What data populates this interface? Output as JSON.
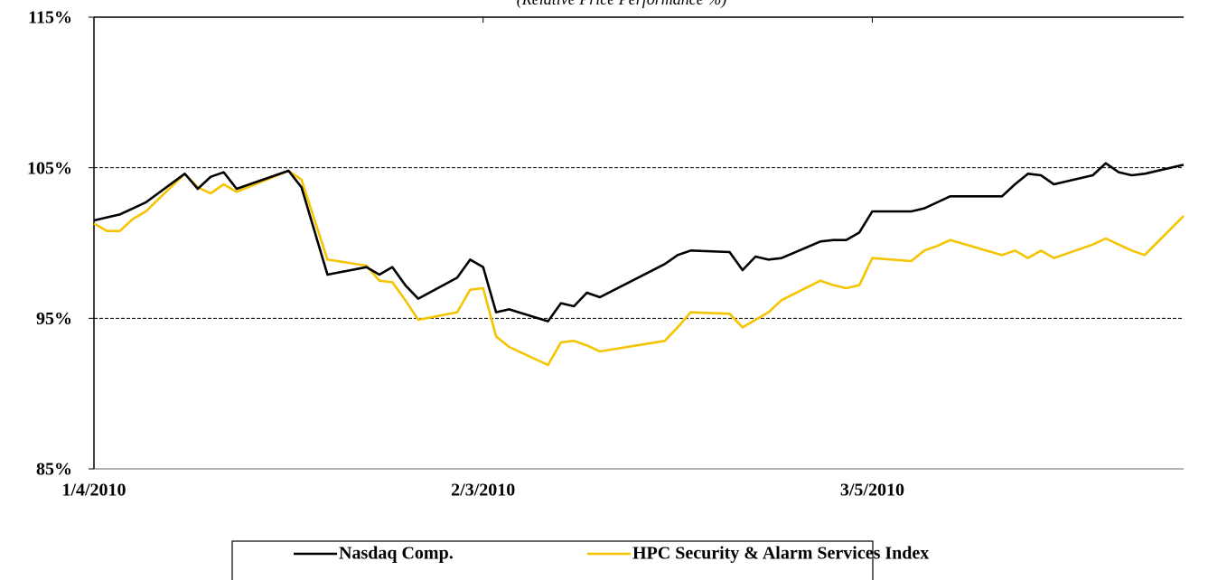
{
  "chart_data": {
    "type": "line",
    "title": "(Relative Price Performance %)",
    "x": [
      "1/4/2010",
      "1/5/2010",
      "1/6/2010",
      "1/7/2010",
      "1/8/2010",
      "1/11/2010",
      "1/12/2010",
      "1/13/2010",
      "1/14/2010",
      "1/15/2010",
      "1/19/2010",
      "1/20/2010",
      "1/22/2010",
      "1/25/2010",
      "1/26/2010",
      "1/27/2010",
      "1/28/2010",
      "1/29/2010",
      "2/1/2010",
      "2/2/2010",
      "2/3/2010",
      "2/4/2010",
      "2/5/2010",
      "2/8/2010",
      "2/9/2010",
      "2/10/2010",
      "2/11/2010",
      "2/12/2010",
      "2/17/2010",
      "2/18/2010",
      "2/19/2010",
      "2/22/2010",
      "2/23/2010",
      "2/24/2010",
      "2/25/2010",
      "2/26/2010",
      "3/1/2010",
      "3/2/2010",
      "3/3/2010",
      "3/4/2010",
      "3/5/2010",
      "3/8/2010",
      "3/9/2010",
      "3/10/2010",
      "3/11/2010",
      "3/15/2010",
      "3/16/2010",
      "3/17/2010",
      "3/18/2010",
      "3/19/2010",
      "3/22/2010",
      "3/23/2010",
      "3/24/2010",
      "3/25/2010",
      "3/26/2010",
      "3/29/2010"
    ],
    "series": [
      {
        "name": "Nasdaq Comp.",
        "color": "#000000",
        "values": [
          101.5,
          101.7,
          101.9,
          102.3,
          102.7,
          104.6,
          103.6,
          104.4,
          104.7,
          103.6,
          104.8,
          103.7,
          97.9,
          98.4,
          97.9,
          98.4,
          97.2,
          96.3,
          97.7,
          98.9,
          98.4,
          95.4,
          95.6,
          94.8,
          96.0,
          95.8,
          96.7,
          96.4,
          98.6,
          99.2,
          99.5,
          99.4,
          98.2,
          99.1,
          98.9,
          99.0,
          100.1,
          100.2,
          100.2,
          100.7,
          102.1,
          102.1,
          102.3,
          102.7,
          103.1,
          103.1,
          103.9,
          104.6,
          104.5,
          103.9,
          104.5,
          105.3,
          104.7,
          104.5,
          104.6,
          105.2
        ]
      },
      {
        "name": "HPC Security & Alarm Services Index",
        "color": "#f5c400",
        "values": [
          101.3,
          100.8,
          100.8,
          101.6,
          102.1,
          104.6,
          103.7,
          103.3,
          103.9,
          103.4,
          104.8,
          104.2,
          98.9,
          98.5,
          97.5,
          97.4,
          96.2,
          94.9,
          95.4,
          96.9,
          97.0,
          93.8,
          93.1,
          91.9,
          93.4,
          93.5,
          93.2,
          92.8,
          93.5,
          94.4,
          95.4,
          95.3,
          94.4,
          94.9,
          95.4,
          96.2,
          97.5,
          97.2,
          97.0,
          97.2,
          99.0,
          98.8,
          99.5,
          99.8,
          100.2,
          99.2,
          99.5,
          99.0,
          99.5,
          99.0,
          99.9,
          100.3,
          99.9,
          99.5,
          99.2,
          101.8
        ]
      }
    ],
    "xlim": [
      "1/4/2010",
      "3/29/2010"
    ],
    "xticks": [
      "1/4/2010",
      "2/3/2010",
      "3/5/2010"
    ],
    "ylim": [
      85,
      115
    ],
    "yticks": [
      {
        "value": 85,
        "label": "85%"
      },
      {
        "value": 95,
        "label": "95%"
      },
      {
        "value": 105,
        "label": "105%"
      },
      {
        "value": 115,
        "label": "115%"
      }
    ],
    "grid": true
  }
}
